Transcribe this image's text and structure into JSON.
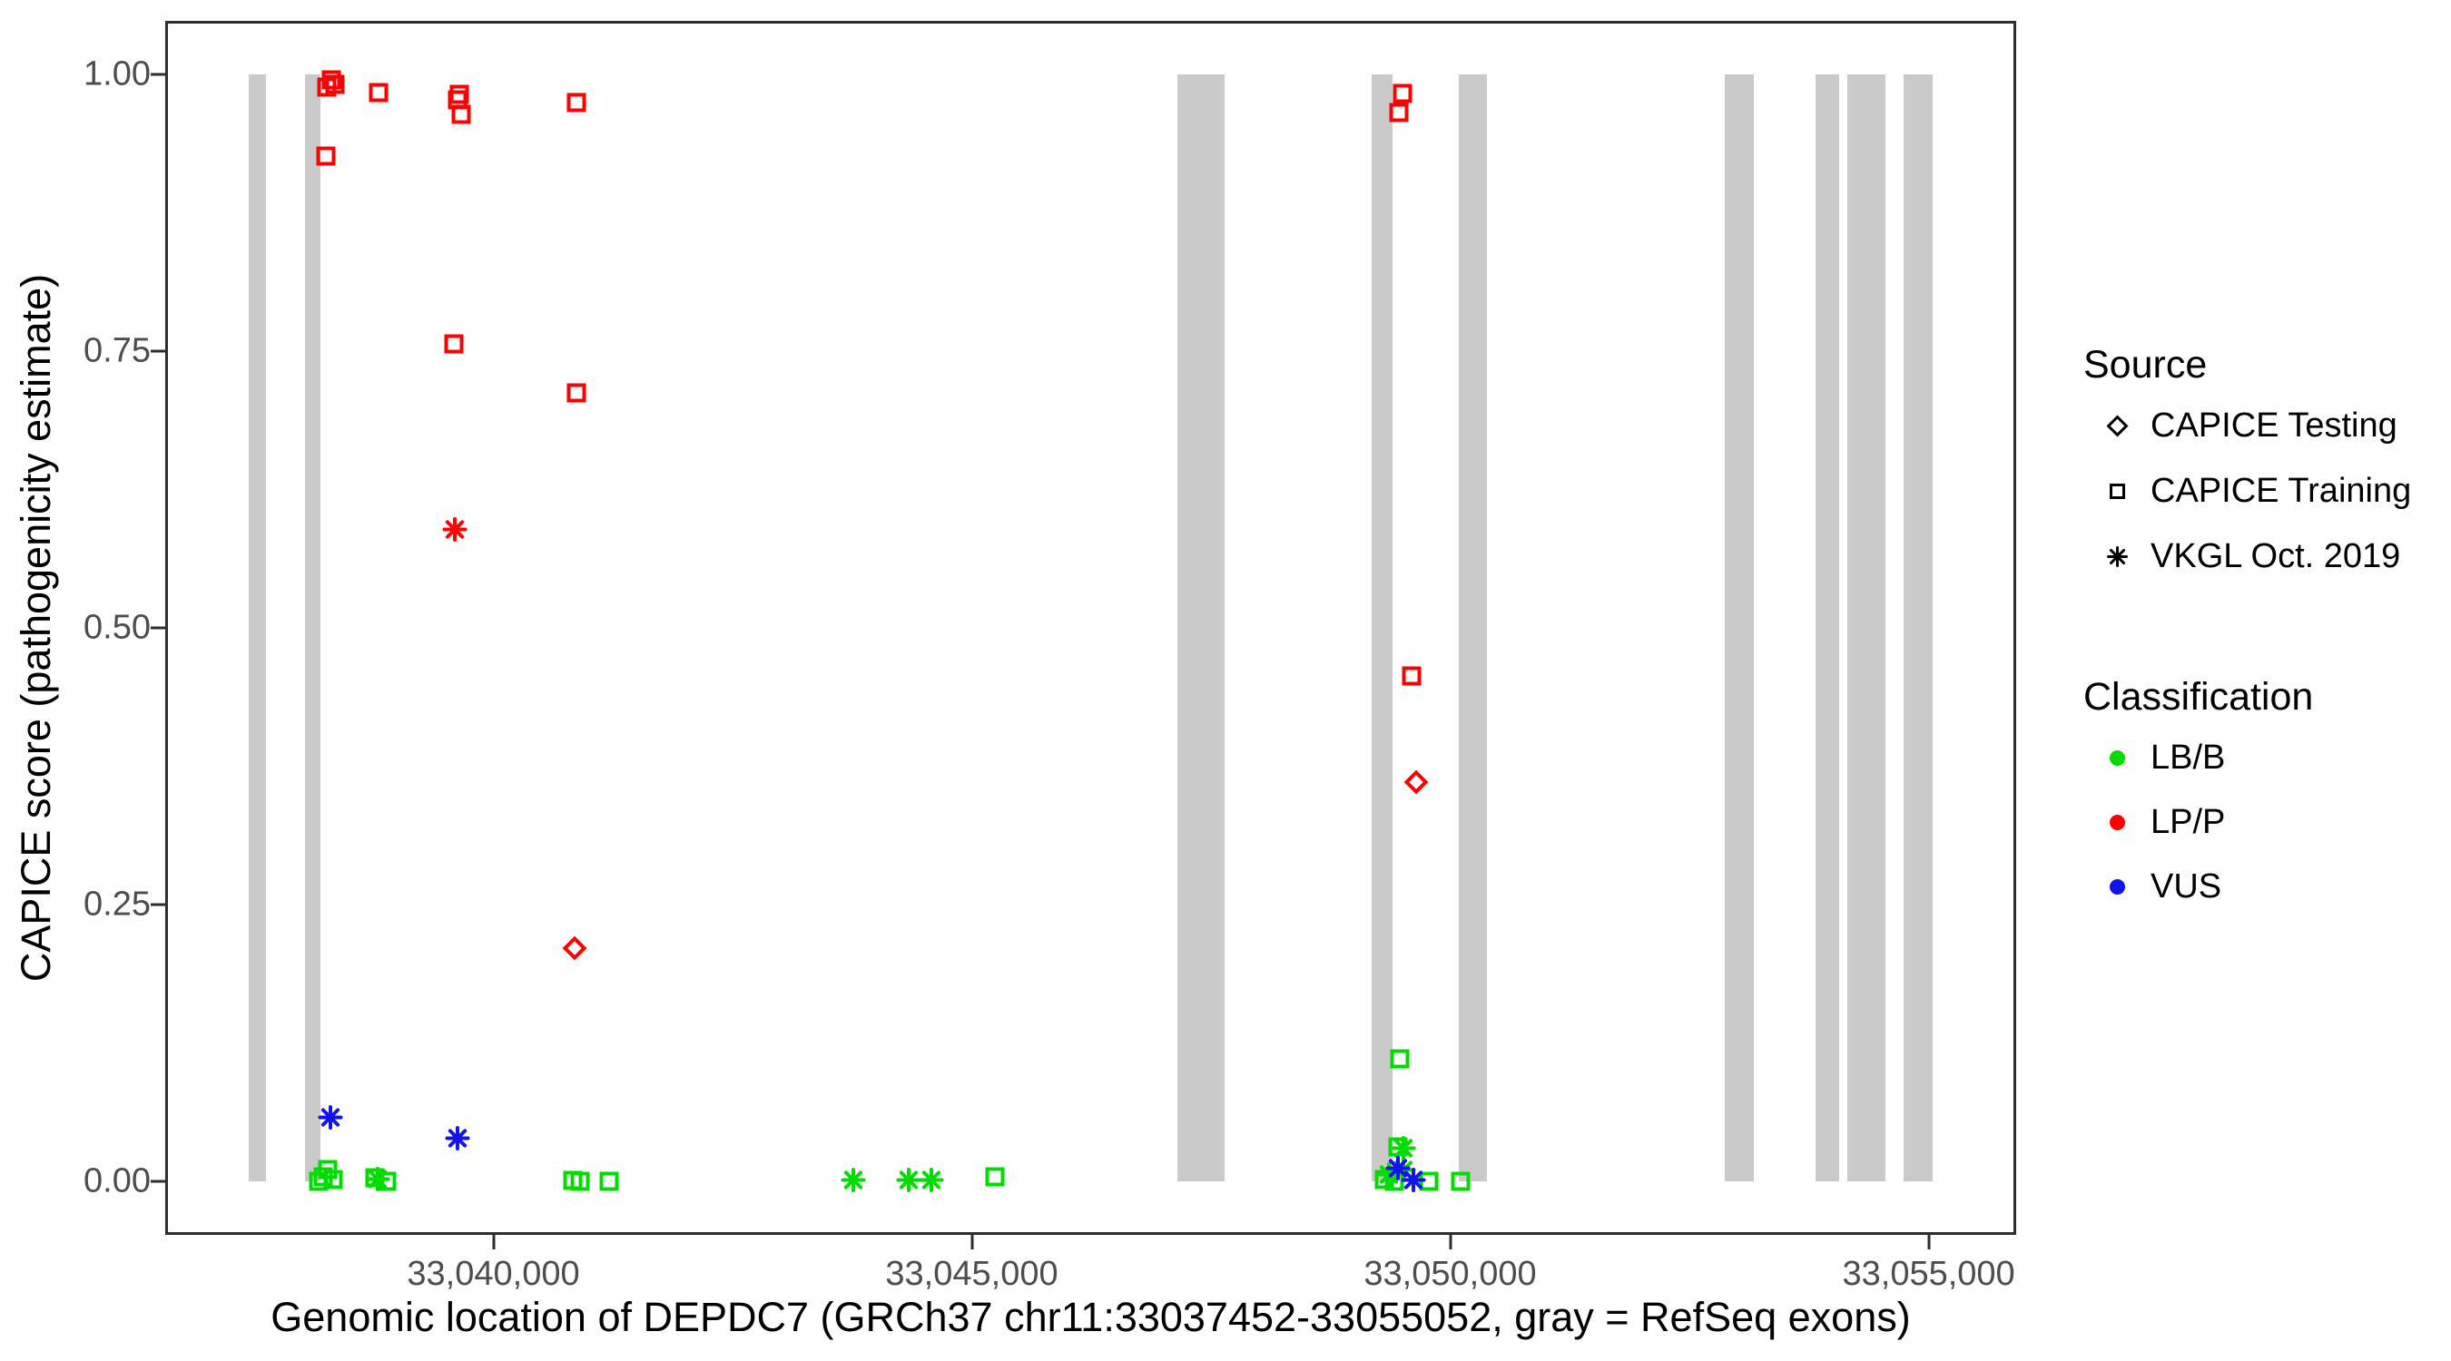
{
  "figure": {
    "x_axis_title": "Genomic location of DEPDC7 (GRCh37 chr11:33037452-33055052, gray = RefSeq exons)",
    "y_axis_title": "CAPICE score (pathogenicity estimate)"
  },
  "legend": {
    "source": {
      "title": "Source",
      "items": [
        {
          "shape": "diamond",
          "label": "CAPICE Testing"
        },
        {
          "shape": "square",
          "label": "CAPICE Training"
        },
        {
          "shape": "asterisk",
          "label": "VKGL Oct. 2019"
        }
      ]
    },
    "classification": {
      "title": "Classification",
      "items": [
        {
          "label": "LB/B",
          "color": "#00DC00"
        },
        {
          "label": "LP/P",
          "color": "#FF0000"
        },
        {
          "label": "VUS",
          "color": "#1414E8"
        }
      ]
    }
  },
  "chart_data": {
    "type": "scatter",
    "title": "",
    "xlabel": "Genomic location of DEPDC7 (GRCh37 chr11:33037452-33055052, gray = RefSeq exons)",
    "ylabel": "CAPICE score (pathogenicity estimate)",
    "grid": "off",
    "legend_position": "right",
    "x_domain": [
      33036570,
      33055915
    ],
    "y_domain": [
      -0.0484,
      1.0484
    ],
    "x_ticks": [
      {
        "value": 33040000,
        "label": "33,040,000"
      },
      {
        "value": 33045000,
        "label": "33,045,000"
      },
      {
        "value": 33050000,
        "label": "33,050,000"
      },
      {
        "value": 33055000,
        "label": "33,055,000"
      }
    ],
    "y_ticks": [
      {
        "value": 0.0,
        "label": "0.00"
      },
      {
        "value": 0.25,
        "label": "0.25"
      },
      {
        "value": 0.5,
        "label": "0.50"
      },
      {
        "value": 0.75,
        "label": "0.75"
      },
      {
        "value": 1.0,
        "label": "1.00"
      }
    ],
    "exon_color": "#CACACA",
    "exon_note": "gray = RefSeq exons",
    "exons_bp": [
      [
        33037440,
        33037620
      ],
      [
        33038030,
        33038190
      ],
      [
        33047150,
        33047640
      ],
      [
        33049175,
        33049400
      ],
      [
        33050085,
        33050380
      ],
      [
        33052865,
        33053175
      ],
      [
        33053820,
        33054065
      ],
      [
        33054150,
        33054550
      ],
      [
        33054740,
        33055045
      ]
    ],
    "classification_colors": {
      "LB/B": "#00DC00",
      "LP/P": "#FF0000",
      "VUS": "#1414E8"
    },
    "source_shapes": {
      "CAPICE Testing": "diamond",
      "CAPICE Training": "square",
      "VKGL Oct. 2019": "asterisk"
    },
    "points": [
      {
        "bp": 33038270,
        "score": 0.011,
        "source": "CAPICE Training",
        "classification": "LB/B"
      },
      {
        "bp": 33038220,
        "score": 0.004,
        "source": "CAPICE Training",
        "classification": "LB/B"
      },
      {
        "bp": 33038170,
        "score": 0.0,
        "source": "CAPICE Training",
        "classification": "LB/B"
      },
      {
        "bp": 33038320,
        "score": 0.002,
        "source": "CAPICE Training",
        "classification": "LB/B"
      },
      {
        "bp": 33038760,
        "score": 0.003,
        "source": "CAPICE Training",
        "classification": "LB/B"
      },
      {
        "bp": 33038880,
        "score": 0.0,
        "source": "CAPICE Training",
        "classification": "LB/B"
      },
      {
        "bp": 33038787,
        "score": 0.002,
        "source": "VKGL Oct. 2019",
        "classification": "LB/B"
      },
      {
        "bp": 33040825,
        "score": 0.001,
        "source": "CAPICE Training",
        "classification": "LB/B"
      },
      {
        "bp": 33040910,
        "score": 0.0,
        "source": "CAPICE Training",
        "classification": "LB/B"
      },
      {
        "bp": 33041213,
        "score": 0.0,
        "source": "CAPICE Training",
        "classification": "LB/B"
      },
      {
        "bp": 33043763,
        "score": 0.001,
        "source": "VKGL Oct. 2019",
        "classification": "LB/B"
      },
      {
        "bp": 33044341,
        "score": 0.001,
        "source": "VKGL Oct. 2019",
        "classification": "LB/B"
      },
      {
        "bp": 33044578,
        "score": 0.001,
        "source": "VKGL Oct. 2019",
        "classification": "LB/B"
      },
      {
        "bp": 33045242,
        "score": 0.004,
        "source": "CAPICE Training",
        "classification": "LB/B"
      },
      {
        "bp": 33049470,
        "score": 0.111,
        "source": "CAPICE Training",
        "classification": "LB/B"
      },
      {
        "bp": 33049450,
        "score": 0.031,
        "source": "CAPICE Training",
        "classification": "LB/B"
      },
      {
        "bp": 33049507,
        "score": 0.03,
        "source": "VKGL Oct. 2019",
        "classification": "LB/B"
      },
      {
        "bp": 33049356,
        "score": 0.006,
        "source": "VKGL Oct. 2019",
        "classification": "LB/B"
      },
      {
        "bp": 33049507,
        "score": 0.01,
        "source": "VKGL Oct. 2019",
        "classification": "LB/B"
      },
      {
        "bp": 33049308,
        "score": 0.002,
        "source": "CAPICE Training",
        "classification": "LB/B"
      },
      {
        "bp": 33049412,
        "score": 0.0,
        "source": "CAPICE Training",
        "classification": "LB/B"
      },
      {
        "bp": 33049772,
        "score": 0.0,
        "source": "CAPICE Training",
        "classification": "LB/B"
      },
      {
        "bp": 33050104,
        "score": 0.0,
        "source": "CAPICE Training",
        "classification": "LB/B"
      },
      {
        "bp": 33038294,
        "score": 0.058,
        "source": "VKGL Oct. 2019",
        "classification": "VUS"
      },
      {
        "bp": 33039621,
        "score": 0.039,
        "source": "VKGL Oct. 2019",
        "classification": "VUS"
      },
      {
        "bp": 33049451,
        "score": 0.012,
        "source": "VKGL Oct. 2019",
        "classification": "VUS"
      },
      {
        "bp": 33049611,
        "score": 0.001,
        "source": "VKGL Oct. 2019",
        "classification": "VUS"
      },
      {
        "bp": 33038303,
        "score": 0.995,
        "source": "CAPICE Training",
        "classification": "LP/P"
      },
      {
        "bp": 33038256,
        "score": 0.989,
        "source": "CAPICE Training",
        "classification": "LP/P"
      },
      {
        "bp": 33038341,
        "score": 0.991,
        "source": "CAPICE Training",
        "classification": "LP/P"
      },
      {
        "bp": 33038247,
        "score": 0.926,
        "source": "CAPICE Training",
        "classification": "LP/P"
      },
      {
        "bp": 33038796,
        "score": 0.984,
        "source": "CAPICE Training",
        "classification": "LP/P"
      },
      {
        "bp": 33039640,
        "score": 0.982,
        "source": "CAPICE Training",
        "classification": "LP/P"
      },
      {
        "bp": 33039621,
        "score": 0.977,
        "source": "CAPICE Training",
        "classification": "LP/P"
      },
      {
        "bp": 33039659,
        "score": 0.964,
        "source": "CAPICE Training",
        "classification": "LP/P"
      },
      {
        "bp": 33040863,
        "score": 0.975,
        "source": "CAPICE Training",
        "classification": "LP/P"
      },
      {
        "bp": 33039583,
        "score": 0.757,
        "source": "CAPICE Training",
        "classification": "LP/P"
      },
      {
        "bp": 33040863,
        "score": 0.712,
        "source": "CAPICE Training",
        "classification": "LP/P"
      },
      {
        "bp": 33039593,
        "score": 0.589,
        "source": "VKGL Oct. 2019",
        "classification": "LP/P"
      },
      {
        "bp": 33049498,
        "score": 0.983,
        "source": "CAPICE Training",
        "classification": "LP/P"
      },
      {
        "bp": 33049460,
        "score": 0.966,
        "source": "CAPICE Training",
        "classification": "LP/P"
      },
      {
        "bp": 33049592,
        "score": 0.457,
        "source": "CAPICE Training",
        "classification": "LP/P"
      },
      {
        "bp": 33040844,
        "score": 0.211,
        "source": "CAPICE Testing",
        "classification": "LP/P"
      },
      {
        "bp": 33049639,
        "score": 0.361,
        "source": "CAPICE Testing",
        "classification": "LP/P"
      }
    ]
  }
}
